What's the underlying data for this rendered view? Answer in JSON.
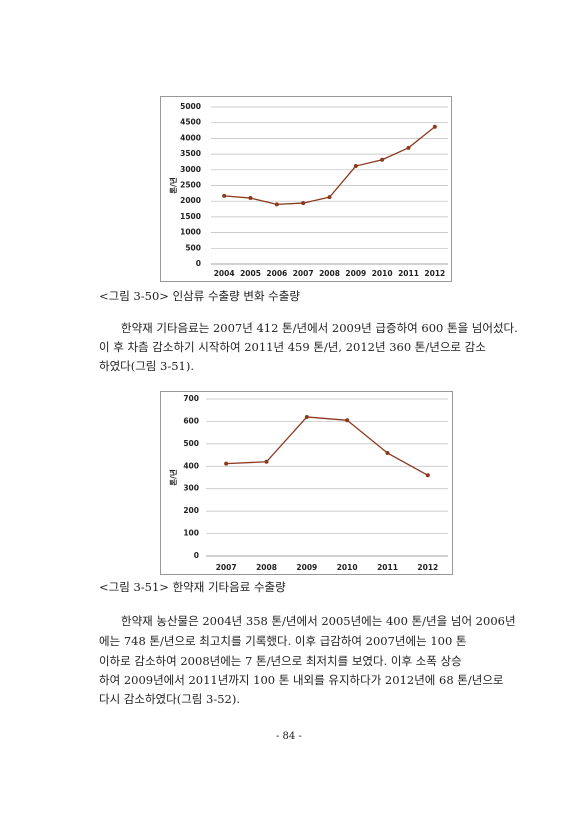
{
  "chart_data": [
    {
      "type": "line",
      "y_label": "톤/년",
      "categories": [
        "2004",
        "2005",
        "2006",
        "2007",
        "2008",
        "2009",
        "2010",
        "2011",
        "2012"
      ],
      "series": [
        {
          "color": "#8b3a1e",
          "values": [
            2170,
            2100,
            1900,
            1940,
            2130,
            3120,
            3320,
            3700,
            4370
          ]
        }
      ],
      "ylim": [
        0,
        5000
      ],
      "yticks": [
        0,
        500,
        1000,
        1500,
        2000,
        2500,
        3000,
        3500,
        4000,
        4500,
        5000
      ],
      "grid": true
    },
    {
      "type": "line",
      "y_label": "톤/년",
      "categories": [
        "2007",
        "2008",
        "2009",
        "2010",
        "2011",
        "2012"
      ],
      "series": [
        {
          "color": "#8b3a1e",
          "values": [
            412,
            420,
            620,
            605,
            459,
            360
          ]
        }
      ],
      "ylim": [
        0,
        700
      ],
      "yticks": [
        0,
        100,
        200,
        300,
        400,
        500,
        600,
        700
      ],
      "grid": true
    }
  ],
  "document": {
    "captions": [
      "<그림 3-50> 인삼류 수출량 변화 수출량",
      "<그림 3-51> 한약재 기타음료 수출량"
    ],
    "paragraphs": [
      [
        "한약재 기타음료는 2007년 412 톤/년에서 2009년 급증하여 600 톤을 넘어섰다.",
        "이 후 차츰 감소하기 시작하여 2011년 459 톤/년, 2012년 360 톤/년으로 감소",
        "하였다(그림 3-51)."
      ],
      [
        "한약재 농산물은 2004년 358 톤/년에서 2005년에는 400 톤/년을 넘어 2006년",
        "에는 748 톤/년으로 최고치를 기록했다. 이후 급감하여 2007년에는 100 톤",
        "이하로 감소하여 2008년에는 7 톤/년으로 최저치를 보였다. 이후 소폭 상승",
        "하여 2009년에서 2011년까지 100 톤 내외를 유지하다가 2012년에 68 톤/년으로",
        "다시 감소하였다(그림 3-52)."
      ]
    ],
    "page_number": "- 84 -"
  }
}
